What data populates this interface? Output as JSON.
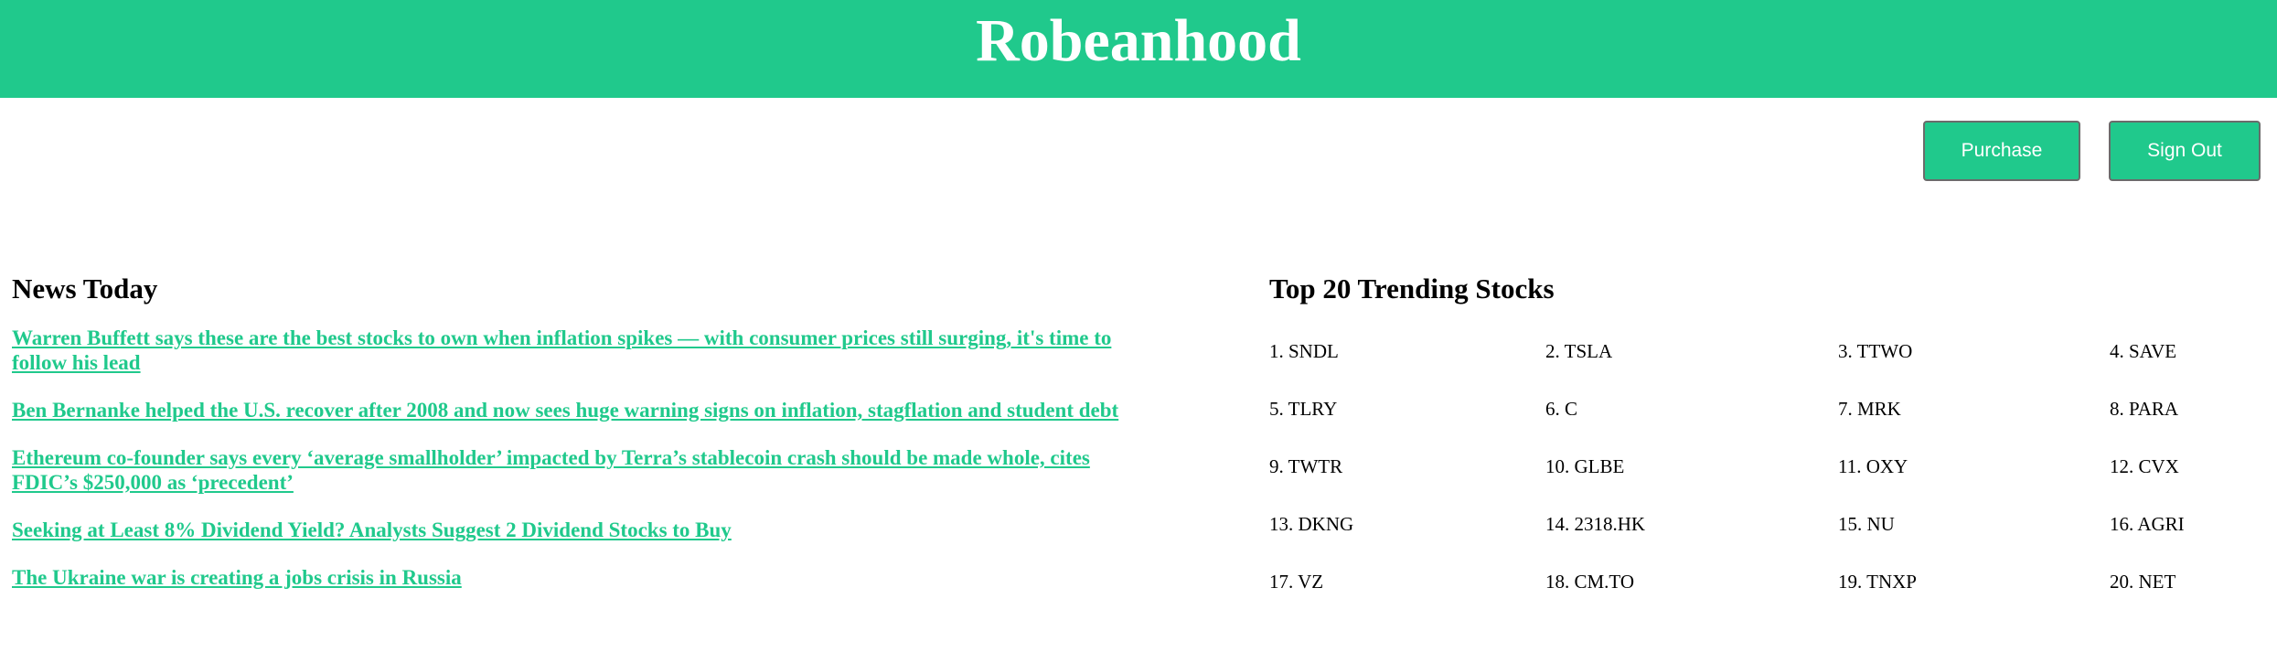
{
  "header": {
    "title": "Robeanhood"
  },
  "actions": {
    "purchase_label": "Purchase",
    "signout_label": "Sign Out"
  },
  "news": {
    "title": "News Today",
    "items": [
      "Warren Buffett says these are the best stocks to own when inflation spikes — with consumer prices still surging, it's time to follow his lead",
      "Ben Bernanke helped the U.S. recover after 2008 and now sees huge warning signs on inflation, stagflation and student debt",
      "Ethereum co-founder says every ‘average smallholder’ impacted by Terra’s stablecoin crash should be made whole, cites FDIC’s $250,000 as ‘precedent’",
      "Seeking at Least 8% Dividend Yield? Analysts Suggest 2 Dividend Stocks to Buy",
      "The Ukraine war is creating a jobs crisis in Russia"
    ]
  },
  "trending": {
    "title": "Top 20 Trending Stocks",
    "stocks": [
      "1. SNDL",
      "2. TSLA",
      "3. TTWO",
      "4. SAVE",
      "5. TLRY",
      "6. C",
      "7. MRK",
      "8. PARA",
      "9. TWTR",
      "10. GLBE",
      "11. OXY",
      "12. CVX",
      "13. DKNG",
      "14. 2318.HK",
      "15. NU",
      "16. AGRI",
      "17. VZ",
      "18. CM.TO",
      "19. TNXP",
      "20. NET"
    ]
  },
  "colors": {
    "brand": "#20c98c",
    "text": "#000000",
    "button_border": "#6b6b6b"
  }
}
